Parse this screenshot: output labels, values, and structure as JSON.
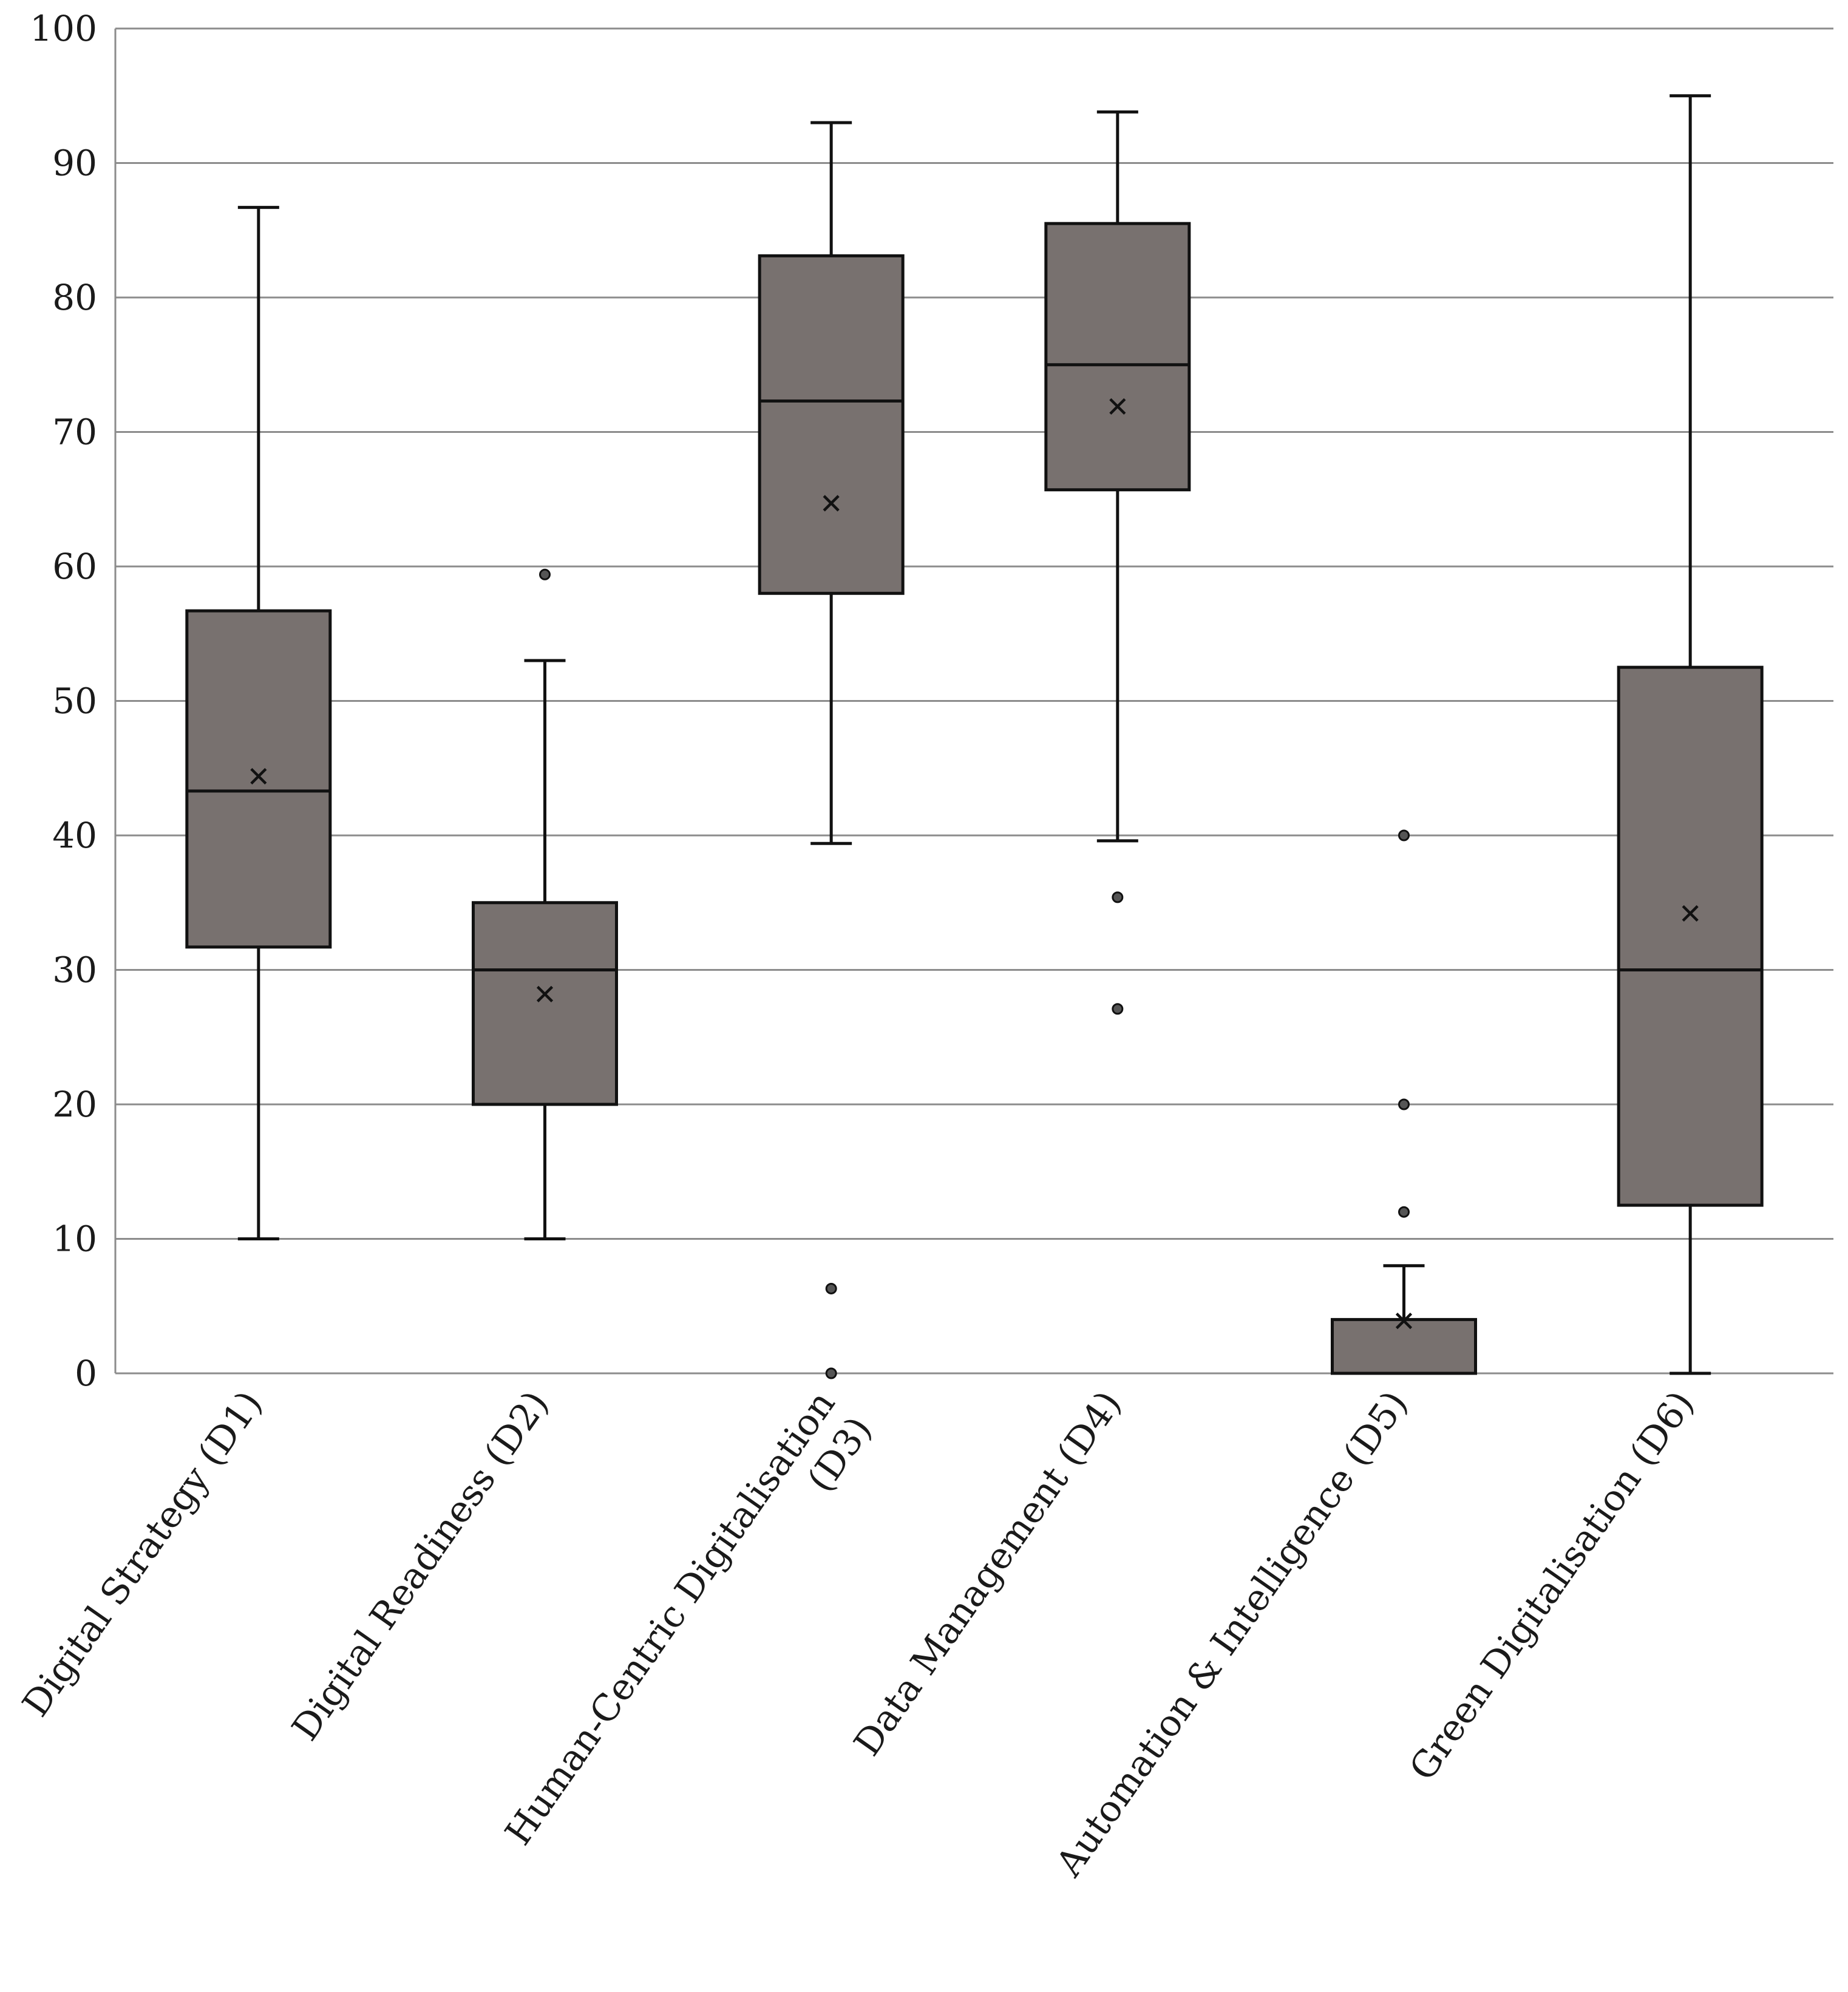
{
  "chart_data": {
    "type": "boxplot",
    "title": "",
    "xlabel": "",
    "ylabel": "",
    "ylim": [
      0,
      100
    ],
    "yticks": [
      "0",
      "10",
      "20",
      "30",
      "40",
      "50",
      "60",
      "70",
      "80",
      "90",
      "100"
    ],
    "grid": true,
    "box_color": "#78716f",
    "categories": [
      {
        "label_lines": [
          "Digital Strategy (D1)"
        ],
        "min": 10,
        "q1": 31.7,
        "median": 43.3,
        "q3": 56.7,
        "max": 86.7,
        "mean": 44.4,
        "outliers": []
      },
      {
        "label_lines": [
          "Digital Readiness (D2)"
        ],
        "min": 10,
        "q1": 20,
        "median": 30,
        "q3": 35,
        "max": 53,
        "mean": 28.2,
        "outliers": [
          59.4
        ]
      },
      {
        "label_lines": [
          "Human-Centric Digitalisation",
          "(D3)"
        ],
        "min": 39.4,
        "q1": 58,
        "median": 72.3,
        "q3": 83.1,
        "max": 93,
        "mean": 64.7,
        "outliers": [
          6.3,
          0
        ]
      },
      {
        "label_lines": [
          "Data Management (D4)"
        ],
        "min": 39.6,
        "q1": 65.7,
        "median": 75,
        "q3": 85.5,
        "max": 93.8,
        "mean": 71.9,
        "outliers": [
          35.4,
          27.1
        ]
      },
      {
        "label_lines": [
          "Automation & Intelligence (D5)"
        ],
        "min": 0,
        "q1": 0,
        "median": 0,
        "q3": 4,
        "max": 8,
        "mean": 3.9,
        "outliers": [
          40,
          20,
          12
        ]
      },
      {
        "label_lines": [
          "Green Digitalisation (D6)"
        ],
        "min": 0,
        "q1": 12.5,
        "median": 30,
        "q3": 52.5,
        "max": 95,
        "mean": 34.2,
        "outliers": []
      }
    ]
  }
}
